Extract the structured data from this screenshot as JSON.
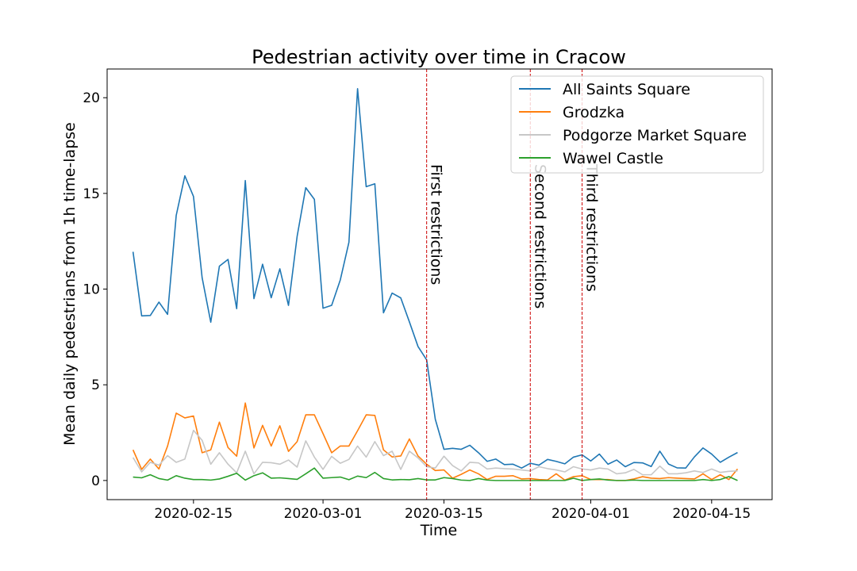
{
  "chart_data": {
    "type": "line",
    "title": "Pedestrian activity over time in Cracow",
    "xlabel": "Time",
    "ylabel": "Mean daily pedestrians from 1h time-lapse",
    "x_start": "2020-02-08",
    "x_end": "2020-04-19",
    "xlim": [
      "2020-02-05",
      "2020-04-22"
    ],
    "ylim": [
      -1.0,
      21.5
    ],
    "x_ticks": [
      {
        "date": "2020-02-15",
        "label": "2020-02-15"
      },
      {
        "date": "2020-03-01",
        "label": "2020-03-01"
      },
      {
        "date": "2020-03-15",
        "label": "2020-03-15"
      },
      {
        "date": "2020-04-01",
        "label": "2020-04-01"
      },
      {
        "date": "2020-04-15",
        "label": "2020-04-15"
      }
    ],
    "y_ticks": [
      0,
      5,
      10,
      15,
      20
    ],
    "grid": false,
    "legend_position": "top-right",
    "series": [
      {
        "name": "All Saints Square",
        "color": "#1f77b4",
        "values": [
          11.95,
          8.6,
          8.62,
          9.32,
          8.68,
          13.85,
          15.92,
          14.84,
          10.6,
          8.27,
          11.2,
          11.55,
          8.98,
          15.67,
          9.5,
          11.3,
          9.55,
          11.06,
          9.15,
          12.75,
          15.3,
          14.69,
          9.0,
          9.15,
          10.48,
          12.45,
          20.47,
          15.35,
          15.5,
          8.76,
          9.79,
          9.54,
          8.29,
          7.0,
          6.3,
          3.2,
          1.63,
          1.68,
          1.63,
          1.84,
          1.45,
          1.0,
          1.12,
          0.83,
          0.85,
          0.65,
          0.9,
          0.8,
          1.1,
          1.0,
          0.87,
          1.22,
          1.34,
          1.02,
          1.38,
          0.85,
          1.07,
          0.72,
          0.94,
          0.92,
          0.73,
          1.53,
          0.86,
          0.66,
          0.65,
          1.23,
          1.7,
          1.38,
          0.95,
          1.22,
          1.46
        ]
      },
      {
        "name": "Grodzka",
        "color": "#ff7f0e",
        "values": [
          1.6,
          0.58,
          1.12,
          0.6,
          1.8,
          3.52,
          3.27,
          3.37,
          1.45,
          1.6,
          3.05,
          1.72,
          1.27,
          4.05,
          1.7,
          2.88,
          1.8,
          2.86,
          1.52,
          2.03,
          3.43,
          3.43,
          2.45,
          1.45,
          1.8,
          1.8,
          2.6,
          3.43,
          3.4,
          1.6,
          1.23,
          1.28,
          2.17,
          1.28,
          0.85,
          0.52,
          0.55,
          0.12,
          0.32,
          0.55,
          0.35,
          0.05,
          0.22,
          0.22,
          0.25,
          0.08,
          0.1,
          0.05,
          0.03,
          0.35,
          0.02,
          0.2,
          0.25,
          0.05,
          0.05,
          0.05,
          0.0,
          0.0,
          0.08,
          0.2,
          0.12,
          0.1,
          0.15,
          0.12,
          0.1,
          0.08,
          0.35,
          0.05,
          0.3,
          0.05,
          0.6
        ]
      },
      {
        "name": "Podgorze Market Square",
        "color": "#c7c7c7",
        "values": [
          1.2,
          0.45,
          0.95,
          0.8,
          1.3,
          0.95,
          1.12,
          2.62,
          2.1,
          0.85,
          1.45,
          0.85,
          0.4,
          1.53,
          0.35,
          0.95,
          0.93,
          0.85,
          1.07,
          0.7,
          2.07,
          1.22,
          0.58,
          1.26,
          0.9,
          1.1,
          1.8,
          1.22,
          2.03,
          1.3,
          1.53,
          0.58,
          1.53,
          1.18,
          0.72,
          0.65,
          1.27,
          0.78,
          0.5,
          0.95,
          0.92,
          0.6,
          0.65,
          0.62,
          0.6,
          0.55,
          0.5,
          0.72,
          0.62,
          0.55,
          0.45,
          0.72,
          0.6,
          0.55,
          0.65,
          0.6,
          0.35,
          0.4,
          0.58,
          0.3,
          0.3,
          0.75,
          0.35,
          0.35,
          0.4,
          0.5,
          0.42,
          0.6,
          0.42,
          0.48,
          0.5
        ]
      },
      {
        "name": "Wawel Castle",
        "color": "#2ca02c",
        "values": [
          0.18,
          0.14,
          0.3,
          0.1,
          0.02,
          0.25,
          0.12,
          0.05,
          0.05,
          0.02,
          0.08,
          0.22,
          0.38,
          0.02,
          0.25,
          0.4,
          0.12,
          0.14,
          0.1,
          0.06,
          0.35,
          0.65,
          0.12,
          0.15,
          0.18,
          0.04,
          0.23,
          0.15,
          0.42,
          0.1,
          0.03,
          0.05,
          0.04,
          0.1,
          0.03,
          0.03,
          0.15,
          0.1,
          0.02,
          0.0,
          0.1,
          0.02,
          0.0,
          0.0,
          0.0,
          0.0,
          0.0,
          0.0,
          0.0,
          0.0,
          0.0,
          0.12,
          0.0,
          0.05,
          0.08,
          0.02,
          0.0,
          0.0,
          0.02,
          0.0,
          0.0,
          0.0,
          0.0,
          0.0,
          0.0,
          0.0,
          0.05,
          0.0,
          0.05,
          0.2,
          0.0
        ]
      }
    ],
    "vlines": [
      {
        "date": "2020-03-13",
        "label": "First restrictions",
        "color": "#cc0000"
      },
      {
        "date": "2020-03-25",
        "label": "Second restrictions",
        "color": "#cc0000"
      },
      {
        "date": "2020-03-31",
        "label": "Third restrictions",
        "color": "#cc0000"
      }
    ]
  }
}
